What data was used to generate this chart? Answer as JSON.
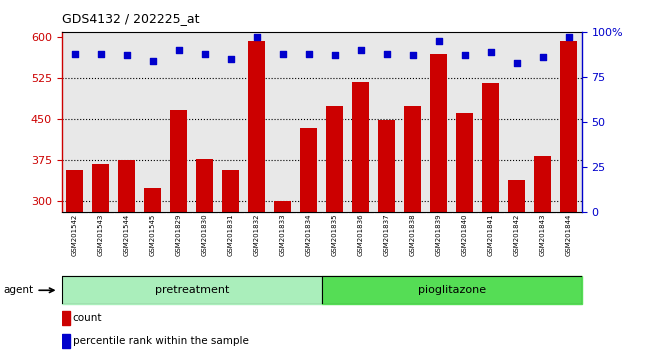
{
  "title": "GDS4132 / 202225_at",
  "samples": [
    "GSM201542",
    "GSM201543",
    "GSM201544",
    "GSM201545",
    "GSM201829",
    "GSM201830",
    "GSM201831",
    "GSM201832",
    "GSM201833",
    "GSM201834",
    "GSM201835",
    "GSM201836",
    "GSM201837",
    "GSM201838",
    "GSM201839",
    "GSM201840",
    "GSM201841",
    "GSM201842",
    "GSM201843",
    "GSM201844"
  ],
  "counts": [
    358,
    368,
    375,
    325,
    467,
    378,
    358,
    593,
    300,
    435,
    474,
    519,
    449,
    474,
    570,
    462,
    517,
    340,
    383,
    593
  ],
  "percentile": [
    88,
    88,
    87,
    84,
    90,
    88,
    85,
    97,
    88,
    88,
    87,
    90,
    88,
    87,
    95,
    87,
    89,
    83,
    86,
    97
  ],
  "bar_color": "#cc0000",
  "dot_color": "#0000cc",
  "ylim_left": [
    280,
    610
  ],
  "ylim_right": [
    0,
    100
  ],
  "yticks_left": [
    300,
    375,
    450,
    525,
    600
  ],
  "yticks_right": [
    0,
    25,
    50,
    75,
    100
  ],
  "n_pretreatment": 10,
  "n_pioglitazone": 10,
  "pretreatment_label": "pretreatment",
  "pioglitazone_label": "pioglitazone",
  "pretreatment_color": "#aaeebb",
  "pioglitazone_color": "#55dd55",
  "agent_label": "agent",
  "legend_count_label": "count",
  "legend_pct_label": "percentile rank within the sample",
  "bg_plot": "#e8e8e8",
  "bg_xtick": "#c0c0c0"
}
